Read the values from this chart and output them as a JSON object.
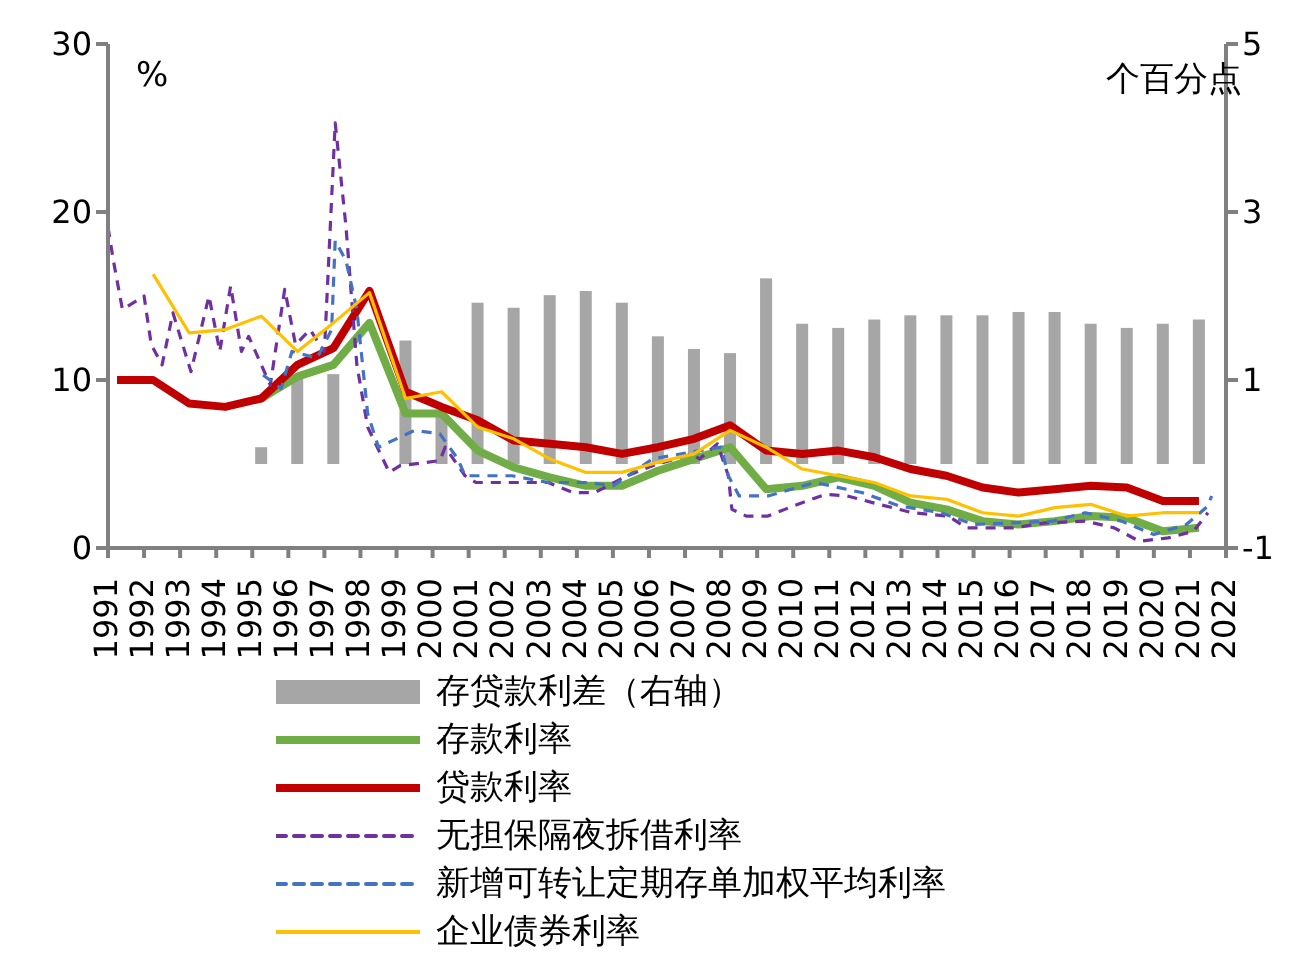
{
  "chart_data": {
    "type": "line",
    "ylabel": "%",
    "y2label": "个百分点",
    "xlim": [
      1991,
      2022
    ],
    "xticks": [
      1991,
      1992,
      1993,
      1994,
      1995,
      1996,
      1997,
      1998,
      1999,
      2000,
      2001,
      2002,
      2003,
      2004,
      2005,
      2006,
      2007,
      2008,
      2009,
      2010,
      2011,
      2012,
      2013,
      2014,
      2015,
      2016,
      2017,
      2018,
      2019,
      2020,
      2021,
      2022
    ],
    "ylim": [
      0,
      30
    ],
    "yticks": [
      0,
      10,
      20,
      30
    ],
    "y2lim": [
      -1,
      5
    ],
    "y2ticks": [
      -1,
      1,
      3,
      5
    ],
    "grid": false,
    "legend": "bottom",
    "marker": "none",
    "series": [
      {
        "name": "存贷款利差（右轴）",
        "type": "bar",
        "axis": "y2",
        "color": "#a6a6a6",
        "x": [
          1995.25,
          1996.25,
          1997.25,
          1998.25,
          1999.25,
          2000.25,
          2001.25,
          2002.25,
          2003.25,
          2004.25,
          2005.25,
          2006.25,
          2007.25,
          2008.25,
          2009.25,
          2010.25,
          2011.25,
          2012.25,
          2013.25,
          2014.25,
          2015.25,
          2016.25,
          2017.25,
          2018.25,
          2019.25,
          2020.25,
          2021.25
        ],
        "values": [
          0.2,
          1.07,
          1.07,
          null,
          1.47,
          0.6,
          1.92,
          1.86,
          2.01,
          2.06,
          1.92,
          1.52,
          1.37,
          1.32,
          2.21,
          1.67,
          1.62,
          1.72,
          1.77,
          1.77,
          1.77,
          1.81,
          1.81,
          1.67,
          1.62,
          1.67,
          1.72
        ]
      },
      {
        "name": "存款利率",
        "color": "#70ad47",
        "x": [
          1995.25,
          1996.25,
          1997.25,
          1998.25,
          1999.25,
          2000.25,
          2001.25,
          2002.25,
          2003.25,
          2004.25,
          2005.25,
          2006.25,
          2007.25,
          2008.25,
          2009.25,
          2010.25,
          2011.25,
          2012.25,
          2013.25,
          2014.25,
          2015.25,
          2016.25,
          2017.25,
          2018.25,
          2019.25,
          2020.25,
          2021.25
        ],
        "values": [
          8.9,
          10.2,
          10.9,
          13.4,
          8.0,
          8.0,
          5.8,
          4.8,
          4.2,
          3.7,
          3.7,
          4.6,
          5.3,
          6.0,
          3.5,
          3.7,
          4.2,
          3.7,
          2.7,
          2.3,
          1.6,
          1.4,
          1.6,
          1.9,
          1.8,
          1.0,
          1.2
        ]
      },
      {
        "name": "贷款利率",
        "color": "#c00000",
        "x": [
          1991.25,
          1992.25,
          1993.25,
          1994.25,
          1995.25,
          1996.25,
          1997.25,
          1998.25,
          1999.25,
          2000.25,
          2001.25,
          2002.25,
          2003.25,
          2004.25,
          2005.25,
          2006.25,
          2007.25,
          2008.25,
          2009.25,
          2010.25,
          2011.25,
          2012.25,
          2013.25,
          2014.25,
          2015.25,
          2016.25,
          2017.25,
          2018.25,
          2019.25,
          2020.25,
          2021.25
        ],
        "values": [
          10,
          10,
          8.6,
          8.4,
          8.9,
          10.9,
          11.9,
          15.3,
          9.3,
          8.4,
          7.6,
          6.4,
          6.2,
          6.0,
          5.6,
          6.0,
          6.5,
          7.3,
          5.8,
          5.6,
          5.8,
          5.4,
          4.7,
          4.3,
          3.6,
          3.3,
          3.5,
          3.7,
          3.6,
          2.8,
          2.8
        ]
      },
      {
        "name": "无担保隔夜拆借利率",
        "line_style": "dashed",
        "color": "#7030a0",
        "x": [
          1991.0,
          1991.15,
          1991.4,
          1992.0,
          1992.2,
          1992.5,
          1992.8,
          1993.3,
          1993.8,
          1994.1,
          1994.4,
          1994.7,
          1994.9,
          1995.5,
          1995.9,
          1996.2,
          1996.6,
          1997.0,
          1997.3,
          1997.6,
          1997.9,
          1998.2,
          1998.8,
          1999.1,
          2000.2,
          2000.35,
          2000.9,
          2001.2,
          2002.05,
          2003.2,
          2003.9,
          2004.5,
          2005.4,
          2006.1,
          2007.2,
          2007.4,
          2007.9,
          2008.2,
          2008.3,
          2008.7,
          2009.3,
          2010.0,
          2010.9,
          2011.5,
          2012.2,
          2013.3,
          2014.3,
          2014.8,
          2016.1,
          2017.0,
          2018.1,
          2018.9,
          2019.6,
          2020.4,
          2021.1,
          2021.5
        ],
        "values": [
          19.1,
          17.1,
          14.2,
          15.0,
          12.1,
          10.9,
          14.0,
          10.5,
          15.0,
          11.7,
          15.6,
          11.7,
          12.6,
          9.7,
          15.4,
          12.1,
          13.0,
          11.7,
          25.3,
          19.1,
          10.9,
          7.2,
          4.5,
          4.9,
          5.2,
          6.0,
          4.3,
          3.9,
          3.9,
          3.9,
          3.3,
          3.3,
          4.3,
          4.9,
          5.6,
          5.3,
          6.2,
          4.3,
          2.3,
          1.9,
          1.9,
          2.5,
          3.2,
          3.1,
          2.7,
          2.1,
          1.9,
          1.2,
          1.2,
          1.5,
          1.6,
          1.2,
          0.4,
          0.6,
          1.0,
          2.1
        ]
      },
      {
        "name": "新增可转让定期存单加权平均利率",
        "line_style": "dashed",
        "color": "#4472c4",
        "x": [
          1995.3,
          1995.8,
          1996.1,
          1996.8,
          1997.2,
          1997.3,
          1997.6,
          1997.9,
          1998.2,
          1998.5,
          1999.5,
          2000.2,
          2000.7,
          2000.9,
          2002.2,
          2003.2,
          2004.3,
          2005.0,
          2006.1,
          2007.4,
          2008.0,
          2008.2,
          2008.5,
          2009.3,
          2010.6,
          2011.9,
          2012.95,
          2014.1,
          2015.0,
          2016.1,
          2017.2,
          2018.1,
          2019.1,
          2020.0,
          2020.9,
          2021.5,
          2021.6
        ],
        "values": [
          10.3,
          9.5,
          11.7,
          11.3,
          13.0,
          18.3,
          17.1,
          14.2,
          8.0,
          6.0,
          7.0,
          6.8,
          5.3,
          4.3,
          4.3,
          3.9,
          3.9,
          3.7,
          5.3,
          5.8,
          6.0,
          4.3,
          3.1,
          3.1,
          3.9,
          3.3,
          2.5,
          2.1,
          1.4,
          1.5,
          1.6,
          2.1,
          1.6,
          0.8,
          1.4,
          2.5,
          3.1
        ]
      },
      {
        "name": "企业债券利率",
        "color": "#ffc000",
        "x": [
          1992.25,
          1993.25,
          1994.25,
          1995.25,
          1996.25,
          1997.25,
          1998.25,
          1999.25,
          2000.25,
          2001.25,
          2002.25,
          2003.25,
          2004.25,
          2005.25,
          2006.25,
          2007.25,
          2008.25,
          2009.25,
          2010.25,
          2011.25,
          2012.25,
          2013.25,
          2014.25,
          2015.25,
          2016.25,
          2017.25,
          2018.25,
          2019.25,
          2020.25,
          2021.25
        ],
        "values": [
          16.3,
          12.8,
          13.0,
          13.8,
          11.7,
          13.4,
          15.2,
          8.9,
          9.3,
          7.2,
          6.5,
          5.3,
          4.5,
          4.5,
          5.1,
          5.6,
          7.0,
          6.0,
          4.7,
          4.3,
          3.9,
          3.1,
          2.9,
          2.1,
          1.9,
          2.4,
          2.6,
          1.9,
          2.1,
          2.1
        ]
      }
    ]
  }
}
